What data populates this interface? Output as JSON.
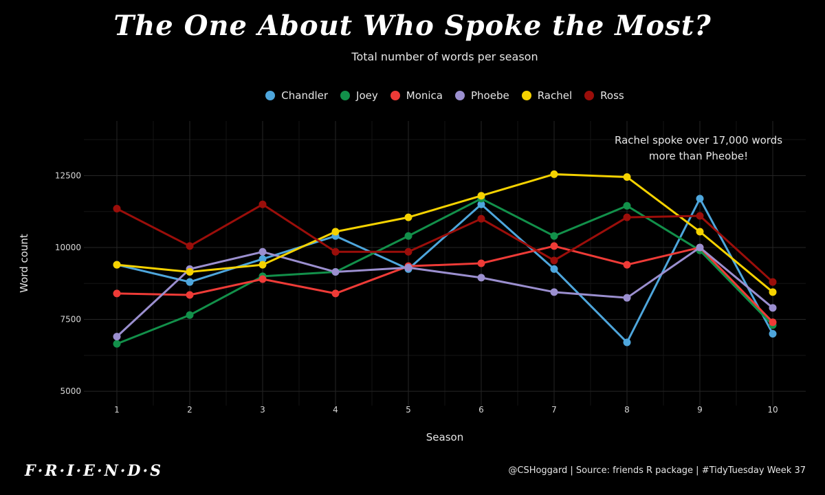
{
  "header": {
    "title": "The One About Who Spoke the Most?",
    "subtitle": "Total number of words per season"
  },
  "annotation": {
    "line1": "Rachel spoke over 17,000 words",
    "line2": "more than Pheobe!"
  },
  "footer": {
    "logo": "F·R·I·E·N·D·S",
    "caption": "@CSHoggard | Source: friends R package | #TidyTuesday Week 37"
  },
  "colors": {
    "background": "#000000",
    "grid_major": "#262626",
    "grid_minor": "#151515"
  },
  "chart_data": {
    "type": "line",
    "title": "The One About Who Spoke the Most?",
    "subtitle": "Total number of words per season",
    "xlabel": "Season",
    "ylabel": "Word count",
    "x": [
      1,
      2,
      3,
      4,
      5,
      6,
      7,
      8,
      9,
      10
    ],
    "xticks": [
      "1",
      "2",
      "3",
      "4",
      "5",
      "6",
      "7",
      "8",
      "9",
      "10"
    ],
    "yticks": [
      "5000",
      "7500",
      "10000",
      "12500"
    ],
    "ylim": [
      4500,
      14400
    ],
    "grid": true,
    "legend_position": "top-center",
    "series": [
      {
        "name": "Chandler",
        "color": "#4ea6dc",
        "values": [
          9400,
          8800,
          9600,
          10400,
          9250,
          11500,
          9250,
          6700,
          11700,
          7000
        ]
      },
      {
        "name": "Joey",
        "color": "#12904a",
        "values": [
          6650,
          7650,
          9000,
          9150,
          10400,
          11700,
          10400,
          11450,
          9900,
          7300
        ]
      },
      {
        "name": "Monica",
        "color": "#ee3b37",
        "values": [
          8400,
          8350,
          8900,
          8400,
          9350,
          9450,
          10050,
          9400,
          10000,
          7400
        ]
      },
      {
        "name": "Phoebe",
        "color": "#9b8fcf",
        "values": [
          6900,
          9250,
          9850,
          9150,
          9300,
          8950,
          8450,
          8250,
          10000,
          7900
        ]
      },
      {
        "name": "Rachel",
        "color": "#f5d200",
        "values": [
          9400,
          9150,
          9400,
          10550,
          11050,
          11800,
          12550,
          12450,
          10550,
          8450
        ]
      },
      {
        "name": "Ross",
        "color": "#9b0e0a",
        "values": [
          11350,
          10050,
          11500,
          9850,
          9850,
          11000,
          9550,
          11050,
          11100,
          8800
        ]
      }
    ]
  }
}
